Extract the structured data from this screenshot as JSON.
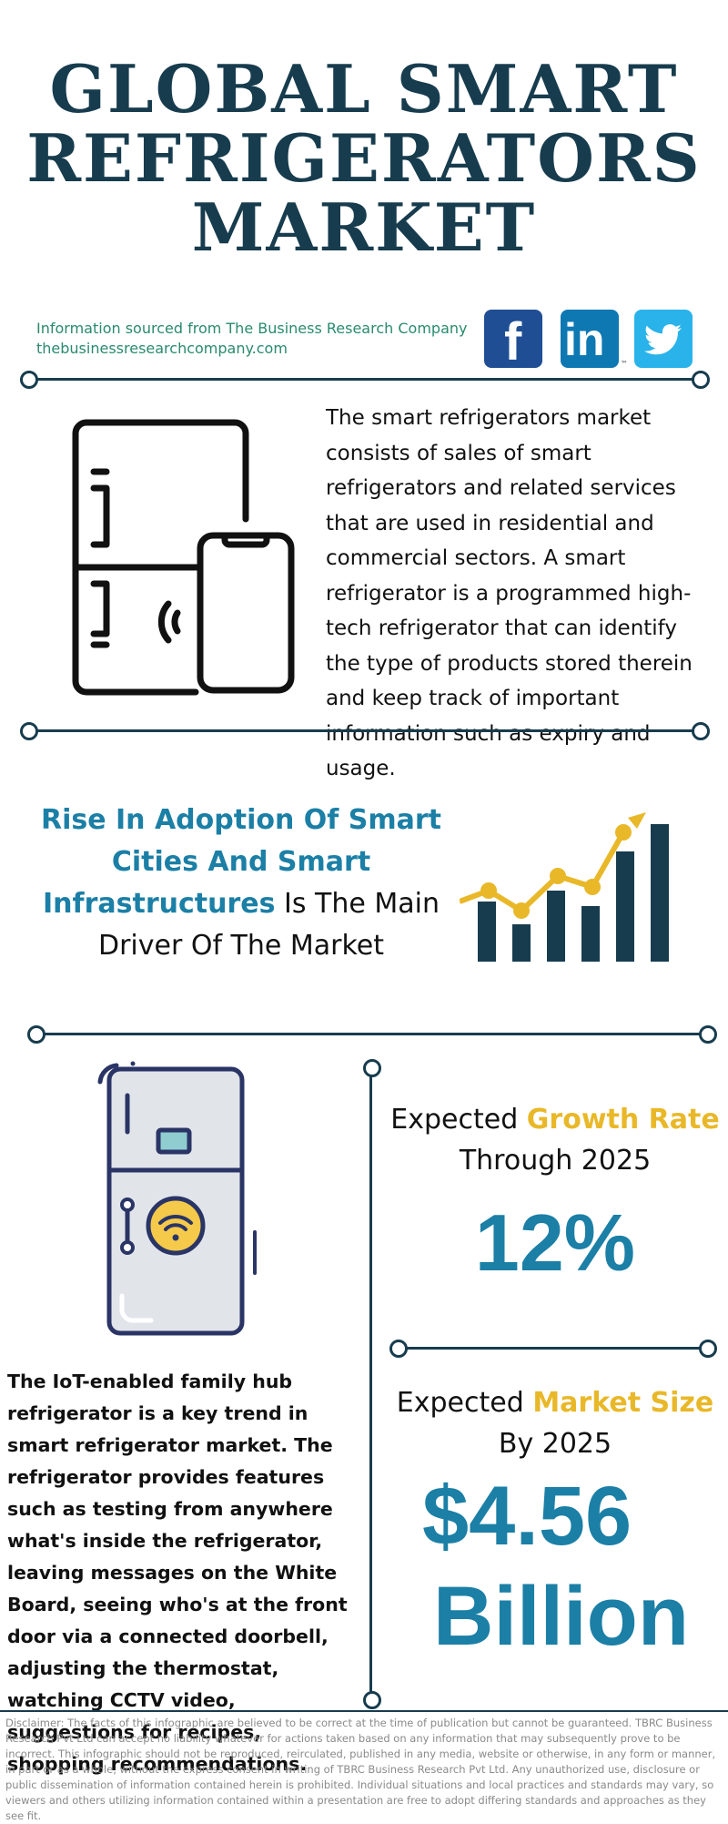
{
  "header": {
    "title_lines": [
      "GLOBAL SMART",
      "REFRIGERATORS",
      "MARKET"
    ]
  },
  "source": {
    "line1": "Information sourced from The Business Research Company",
    "line2": "thebusinessresearchcompany.com"
  },
  "social": {
    "facebook_glyph": "f",
    "linkedin_glyph": "in",
    "linkedin_tm": "™"
  },
  "intro": {
    "description": "The smart refrigerators market consists of sales of smart refrigerators and related services that are used in residential and commercial sectors. A smart refrigerator is a programmed high-tech refrigerator that can identify the type of products stored therein and keep track of important information such as expiry and usage."
  },
  "driver": {
    "highlight": "Rise In Adoption Of Smart Cities And Smart Infrastructures",
    "rest": " Is The Main Driver Of The Market"
  },
  "growth": {
    "label_prefix": "Expected ",
    "label_highlight": "Growth Rate",
    "label_suffix": "Through 2025",
    "value": "12%"
  },
  "market_size": {
    "label_prefix": "Expected ",
    "label_highlight": "Market Size",
    "label_suffix": "By 2025",
    "value_line1": "$4.56",
    "value_line2": "Billion"
  },
  "trend": {
    "text": "The IoT-enabled family hub refrigerator is a key trend in smart refrigerator market. The refrigerator provides features such as testing from anywhere what's inside the refrigerator, leaving messages on the White Board, seeing who's at the front door via a connected doorbell, adjusting the thermostat, watching CCTV video, suggestions for recipes, shopping recommendations."
  },
  "disclaimer": {
    "text": "Disclaimer: The facts of this infographic are believed to be correct at the time of publication but cannot be guaranteed. TBRC Business Research Pvt Ltd can accept no liability whatever for actions taken based on any information that may subsequently prove to be incorrect. This infographic should not be reproduced, reirculated, published in any media, website or otherwise, in any form or manner, in part or as a whole, without the express consent in writing of TBRC Business Research Pvt Ltd. Any unauthorized use, disclosure or public dissemination of information contained herein is prohibited. Individual situations and local practices and standards may vary, so viewers and others utilizing information contained within a presentation are free to adopt differing standards and approaches as they see fit."
  },
  "icons": [
    "refrigerator-phone-icon",
    "bar-chart-growth-icon",
    "smart-fridge-wifi-icon",
    "facebook-icon",
    "linkedin-icon",
    "twitter-icon"
  ],
  "colors": {
    "navy": "#173c4e",
    "blue": "#1b7fa6",
    "gold": "#e9b829",
    "green": "#2a8a6e"
  }
}
